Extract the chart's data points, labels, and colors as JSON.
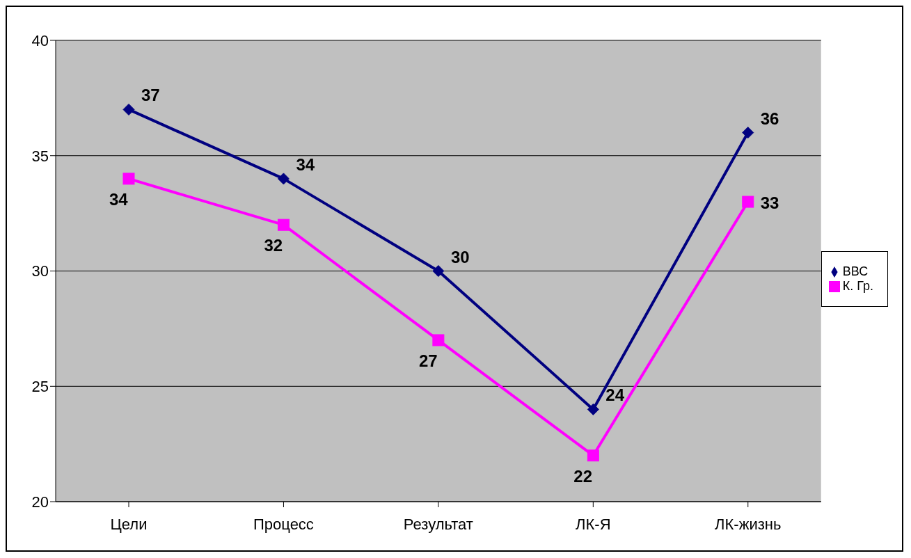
{
  "chart_data": {
    "type": "line",
    "categories": [
      "Цели",
      "Процесс",
      "Результат",
      "ЛК-Я",
      "ЛК-жизнь"
    ],
    "series": [
      {
        "name": "ВВС",
        "color": "#000080",
        "marker": "diamond",
        "values": [
          37,
          34,
          30,
          24,
          36
        ]
      },
      {
        "name": "К. Гр.",
        "color": "#ff00ff",
        "marker": "square",
        "values": [
          34,
          32,
          27,
          22,
          33
        ]
      }
    ],
    "ylim": [
      20,
      40
    ],
    "yticks": [
      20,
      25,
      30,
      35,
      40
    ],
    "grid": "y",
    "legend": "right",
    "data_labels": true
  }
}
